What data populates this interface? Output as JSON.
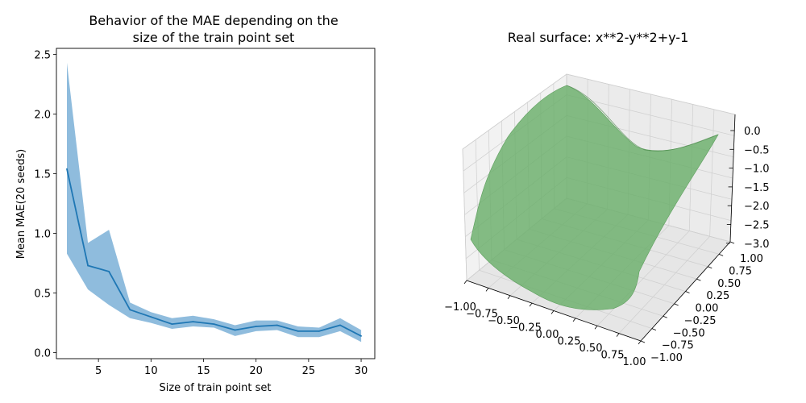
{
  "chart_data": [
    {
      "type": "line",
      "title": "Behavior of the MAE depending on the\nsize of the train point set",
      "xlabel": "Size of train point set",
      "ylabel": "Mean MAE(20 seeds)",
      "xlim": [
        1,
        31.3
      ],
      "ylim": [
        -0.05,
        2.55
      ],
      "xticks": [
        5,
        10,
        15,
        20,
        25,
        30
      ],
      "yticks": [
        0.0,
        0.5,
        1.0,
        1.5,
        2.0,
        2.5
      ],
      "ytick_labels": [
        "0.0",
        "0.5",
        "1.0",
        "1.5",
        "2.0",
        "2.5"
      ],
      "grid": false,
      "line_color": "#1f77b4",
      "band_color": "#8fbcdd",
      "series": [
        {
          "x": [
            2,
            4,
            6,
            8,
            10,
            12,
            14,
            16,
            18,
            20,
            22,
            24,
            26,
            28,
            30
          ],
          "mean": [
            1.54,
            0.73,
            0.68,
            0.36,
            0.3,
            0.24,
            0.26,
            0.24,
            0.19,
            0.22,
            0.23,
            0.18,
            0.18,
            0.23,
            0.14
          ],
          "upper": [
            2.43,
            0.92,
            1.03,
            0.42,
            0.34,
            0.29,
            0.31,
            0.28,
            0.23,
            0.27,
            0.27,
            0.22,
            0.21,
            0.29,
            0.19
          ],
          "lower": [
            0.83,
            0.53,
            0.4,
            0.29,
            0.25,
            0.2,
            0.22,
            0.21,
            0.14,
            0.18,
            0.19,
            0.13,
            0.13,
            0.18,
            0.09
          ]
        }
      ]
    },
    {
      "type": "surface",
      "title": "Real surface: x**2-y**2+y-1",
      "xlim": [
        -1.0,
        1.0
      ],
      "ylim": [
        -1.0,
        1.0
      ],
      "zlim": [
        -3.0,
        0.0
      ],
      "xtick_labels": [
        "−1.00",
        "−0.75",
        "−0.50",
        "−0.25",
        "0.00",
        "0.25",
        "0.50",
        "0.75",
        "1.00"
      ],
      "ytick_labels": [
        "−1.00",
        "−0.75",
        "−0.50",
        "−0.25",
        "0.00",
        "0.25",
        "0.50",
        "0.75",
        "1.00"
      ],
      "ztick_labels": [
        "0.0",
        "−0.5",
        "−1.0",
        "−1.5",
        "−2.0",
        "−2.5",
        "−3.0"
      ],
      "grid": true,
      "surface_color": "#6aaf6a"
    }
  ]
}
